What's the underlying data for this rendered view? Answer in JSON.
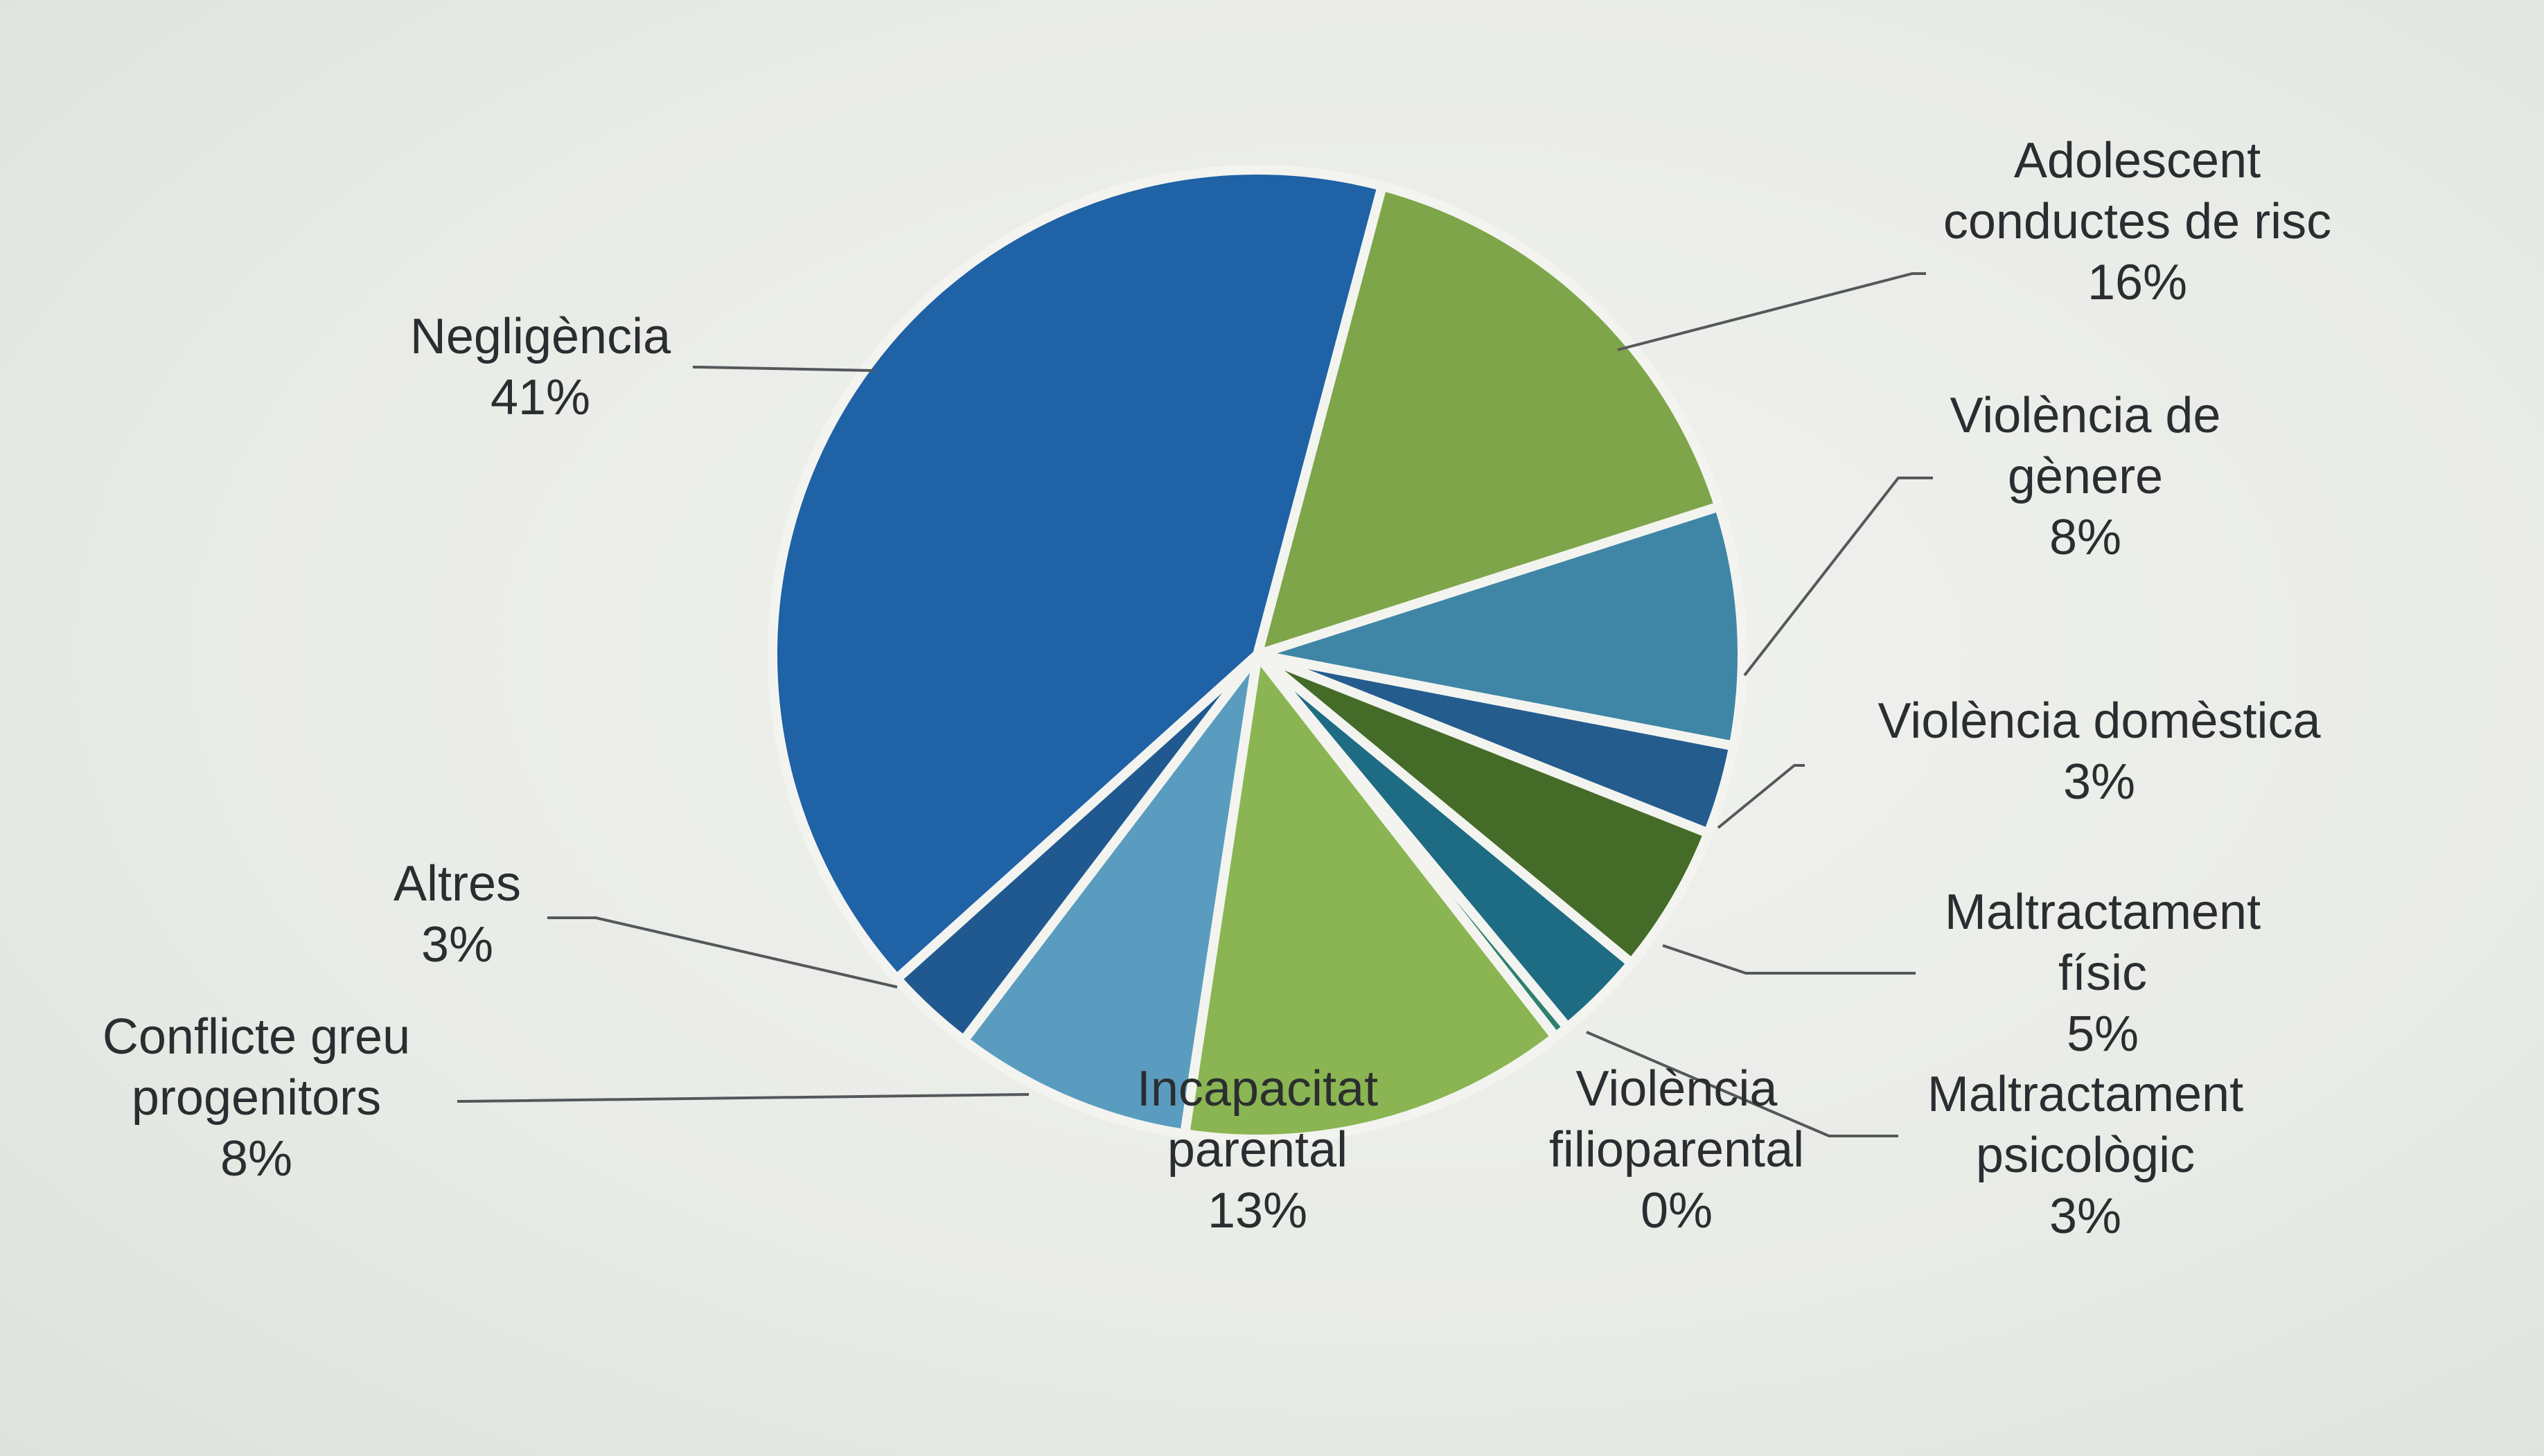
{
  "chart_data": {
    "type": "pie",
    "title": "",
    "start": "top, clockwise",
    "slices": [
      {
        "label": [
          "Adolescent",
          "conductes de risc"
        ],
        "pct_text": "16%",
        "value": 16,
        "color": "#7ea54a"
      },
      {
        "label": [
          "Violència de",
          "gènere"
        ],
        "pct_text": "8%",
        "value": 8,
        "color": "#3f86a6"
      },
      {
        "label": [
          "Violència domèstica"
        ],
        "pct_text": "3%",
        "value": 3,
        "color": "#255c8e"
      },
      {
        "label": [
          "Maltractament",
          "físic"
        ],
        "pct_text": "5%",
        "value": 5,
        "color": "#456b28"
      },
      {
        "label": [
          "Maltractament",
          "psicològic"
        ],
        "pct_text": "3%",
        "value": 3,
        "color": "#1e6b84"
      },
      {
        "label": [
          "Violència",
          "filioparental"
        ],
        "pct_text": "0%",
        "value": 0.5,
        "color": "#2f7f6e"
      },
      {
        "label": [
          "Incapacitat",
          "parental"
        ],
        "pct_text": "13%",
        "value": 13,
        "color": "#8ab552"
      },
      {
        "label": [
          "Conflicte greu",
          "progenitors"
        ],
        "pct_text": "8%",
        "value": 8,
        "color": "#5a9cbf"
      },
      {
        "label": [
          "Altres"
        ],
        "pct_text": "3%",
        "value": 3,
        "color": "#1f5990"
      },
      {
        "label": [
          "Negligència"
        ],
        "pct_text": "41%",
        "value": 41,
        "color": "#1f62a6"
      }
    ]
  }
}
